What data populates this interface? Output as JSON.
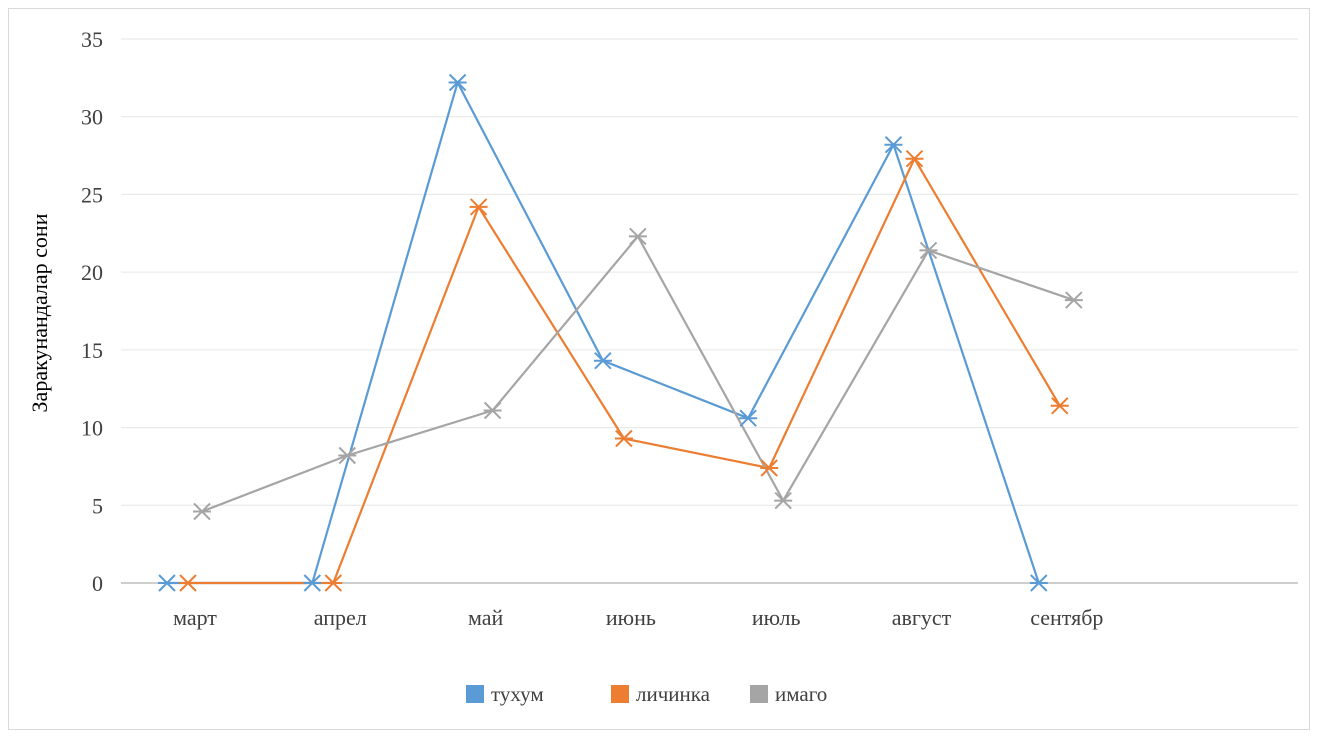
{
  "chart_data": {
    "type": "line",
    "ylabel": "Заракунандалар сони",
    "ylim": [
      0,
      35
    ],
    "yticks": [
      0,
      5,
      10,
      15,
      20,
      25,
      30,
      35
    ],
    "categories": [
      "март",
      "апрел",
      "май",
      "июнь",
      "июль",
      "август",
      "сентябр"
    ],
    "grid": true,
    "legend_position": "bottom",
    "series": [
      {
        "name": "тухум",
        "color": "#5b9bd5",
        "values": [
          0,
          0,
          32.2,
          14.3,
          10.6,
          28.2,
          0
        ]
      },
      {
        "name": "личинка",
        "color": "#ed7d31",
        "values": [
          0,
          0,
          24.2,
          9.3,
          7.4,
          27.3,
          11.4
        ]
      },
      {
        "name": "имаго",
        "color": "#a5a5a5",
        "values": [
          4.6,
          8.2,
          11.1,
          22.3,
          5.3,
          21.4,
          18.2
        ]
      }
    ]
  }
}
